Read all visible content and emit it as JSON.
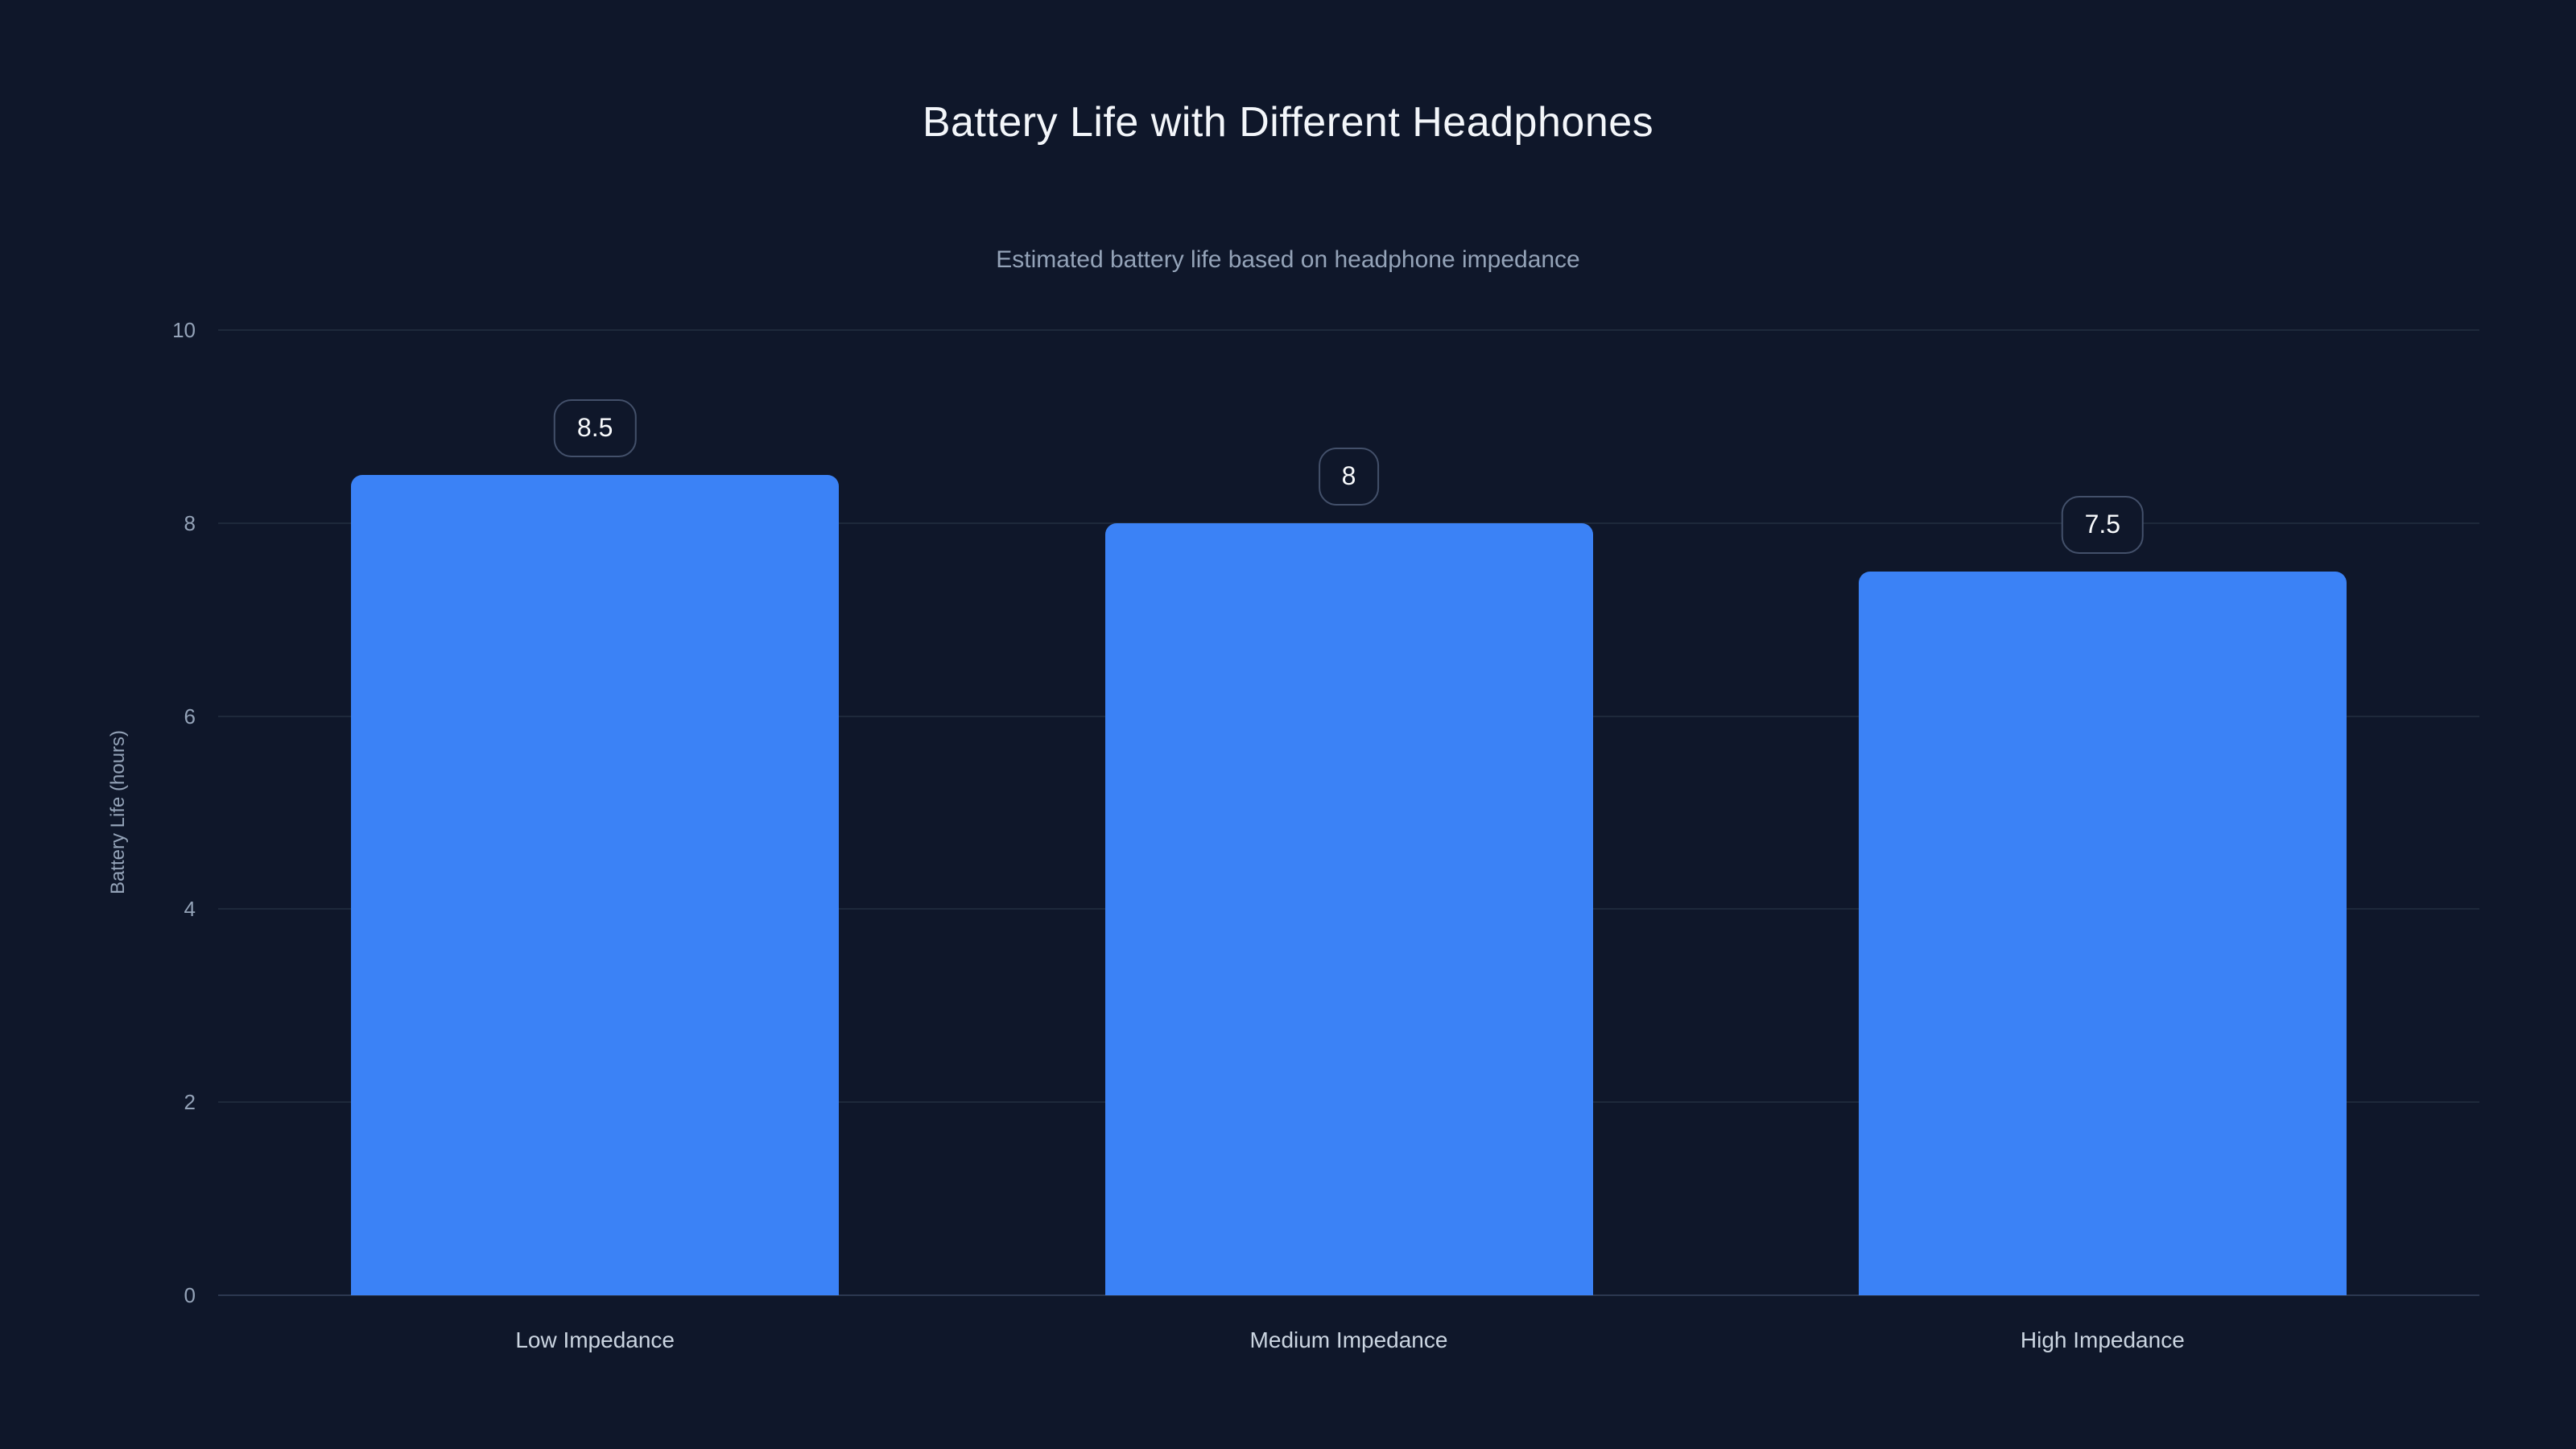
{
  "chart_data": {
    "type": "bar",
    "title": "Battery Life with Different Headphones",
    "subtitle": "Estimated battery life based on headphone impedance",
    "xlabel": "",
    "ylabel": "Battery Life (hours)",
    "categories": [
      "Low Impedance",
      "Medium Impedance",
      "High Impedance"
    ],
    "values": [
      8.5,
      8,
      7.5
    ],
    "value_labels": [
      "8.5",
      "8",
      "7.5"
    ],
    "y_ticks": [
      10,
      8,
      6,
      4,
      2,
      0
    ],
    "ylim": [
      0,
      10
    ],
    "grid": "horizontal gridlines on",
    "legend": "none",
    "colors": {
      "background": "#0f172a",
      "bar": "#3b82f6",
      "title": "#f3f6fa",
      "subtitle": "#94a3b8",
      "gridline": "#1e293b",
      "axis_line": "#2c3850",
      "tick_label": "#94a3b8",
      "category_label": "#cbd5e1",
      "badge_text": "#f8fafc",
      "badge_border": "#43506a"
    }
  }
}
